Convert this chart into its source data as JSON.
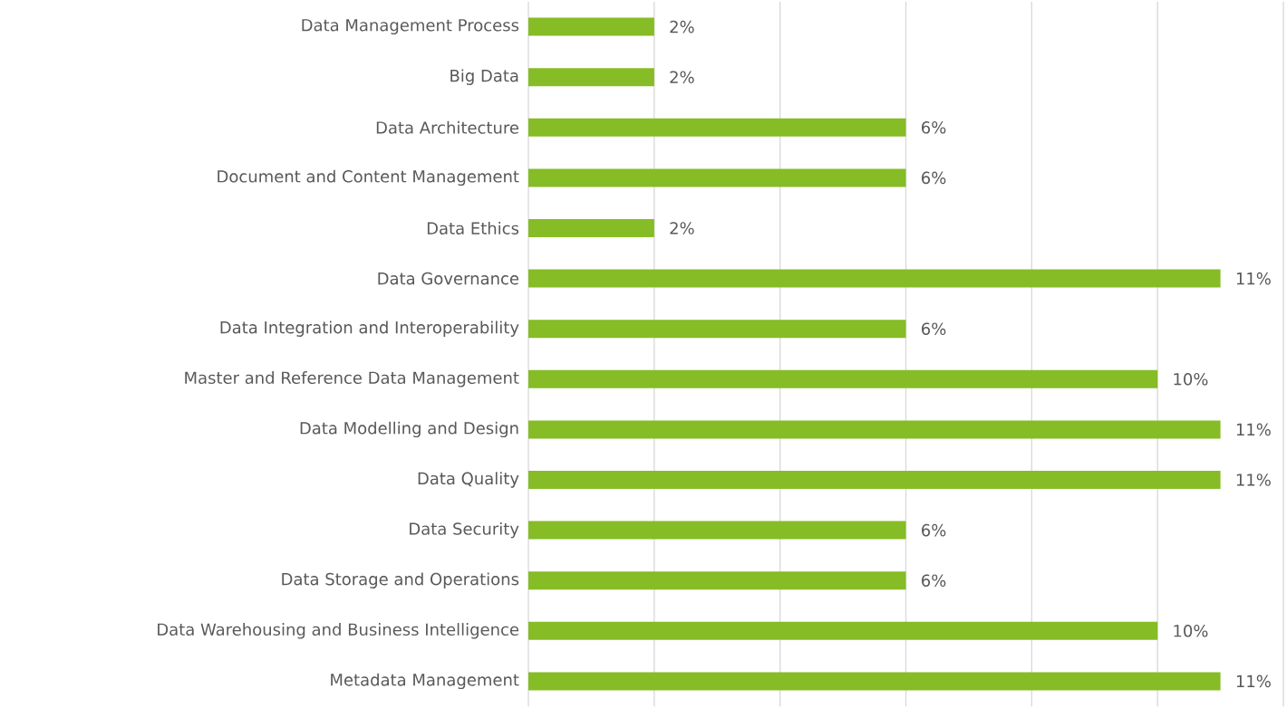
{
  "chart_data": {
    "type": "bar",
    "orientation": "horizontal",
    "categories": [
      "Data Management Process",
      "Big Data",
      "Data Architecture",
      "Document and Content Management",
      "Data Ethics",
      "Data Governance",
      "Data Integration and Interoperability",
      "Master and Reference Data Management",
      "Data Modelling and Design",
      "Data Quality",
      "Data Security",
      "Data Storage and Operations",
      "Data Warehousing and  Business Intelligence",
      "Metadata Management"
    ],
    "values": [
      2,
      2,
      6,
      6,
      2,
      11,
      6,
      10,
      11,
      11,
      6,
      6,
      10,
      11
    ],
    "value_labels": [
      "2%",
      "2%",
      "6%",
      "6%",
      "2%",
      "11%",
      "6%",
      "10%",
      "11%",
      "11%",
      "6%",
      "6%",
      "10%",
      "11%"
    ],
    "color": "#86bc25",
    "xlim": [
      0,
      12
    ],
    "xticks": [
      {
        "value": 0,
        "label": null
      },
      {
        "value": 2,
        "label": null
      },
      {
        "value": 4,
        "label": null
      },
      {
        "value": 6,
        "label": null
      },
      {
        "value": 8,
        "label": null
      },
      {
        "value": 10,
        "label": null
      },
      {
        "value": 12,
        "label": null
      }
    ],
    "grid": "x",
    "tick_labels": "y"
  }
}
